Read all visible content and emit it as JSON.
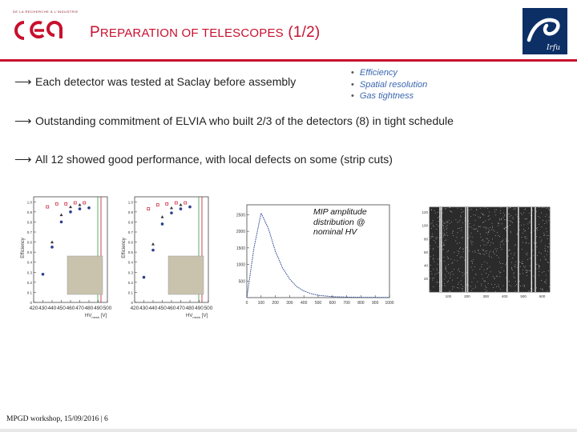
{
  "header": {
    "org_line": "DE LA RECHERCHE À L'INDUSTRIE",
    "title_part1": "P",
    "title_part2": "REPARATION OF TELESCOPES",
    "title_part3": " (1/2)",
    "colors": {
      "accent": "#c8102e",
      "irfu_bg": "#0c2f66",
      "bullet_blue": "#3a67b0"
    }
  },
  "bullets": {
    "row1": "Each detector was tested at Saclay before assembly",
    "row2": "Outstanding commitment of ELVIA who built 2/3 of the detectors (8) in tight schedule",
    "row3": "All 12 showed good performance, with local defects on some (strip cuts)",
    "arrow_glyph": "⟶"
  },
  "sub_bullets": [
    "Efficiency",
    "Spatial resolution",
    "Gas tightness"
  ],
  "caption": "MIP amplitude distribution @ nominal HV",
  "footer": {
    "text": "MPGD workshop, 15/09/2016 | 6"
  },
  "chart_data": [
    {
      "type": "scatter",
      "ylabel": "Efficiency",
      "xlabel": "HV",
      "xlabel_sub": "mesh",
      "xlabel_unit": "[V]",
      "x_ticks": [
        "420",
        "430",
        "440",
        "450",
        "460",
        "470",
        "480",
        "490",
        "500"
      ],
      "y_ticks": [
        "1.0",
        "0.9",
        "0.8",
        "0.7",
        "0.6",
        "0.5",
        "0.4",
        "0.3",
        "0.2",
        "0.1",
        "0"
      ],
      "xlim": [
        420,
        500
      ],
      "ylim": [
        0,
        1.05
      ],
      "series": [
        {
          "marker": "circle-blue",
          "x": [
            430,
            440,
            450,
            460,
            470,
            480
          ],
          "y": [
            0.28,
            0.55,
            0.8,
            0.9,
            0.93,
            0.94
          ]
        },
        {
          "marker": "square-red",
          "x": [
            435,
            445,
            455,
            465,
            475
          ],
          "y": [
            0.95,
            0.98,
            0.98,
            0.99,
            0.99
          ]
        },
        {
          "marker": "triangle-dark",
          "x": [
            440,
            450,
            460,
            470
          ],
          "y": [
            0.6,
            0.87,
            0.95,
            0.97
          ]
        }
      ]
    },
    {
      "type": "scatter",
      "ylabel": "Efficiency",
      "xlabel": "HV",
      "xlabel_sub": "mesh",
      "xlabel_unit": "[V]",
      "x_ticks": [
        "420",
        "430",
        "440",
        "450",
        "460",
        "470",
        "480",
        "490",
        "500"
      ],
      "y_ticks": [
        "1.0",
        "0.9",
        "0.8",
        "0.7",
        "0.6",
        "0.5",
        "0.4",
        "0.3",
        "0.2",
        "0.1",
        "0"
      ],
      "xlim": [
        420,
        500
      ],
      "ylim": [
        0,
        1.05
      ],
      "series": [
        {
          "marker": "circle-blue",
          "x": [
            430,
            440,
            450,
            460,
            470,
            480
          ],
          "y": [
            0.25,
            0.52,
            0.78,
            0.89,
            0.93,
            0.95
          ]
        },
        {
          "marker": "square-red",
          "x": [
            435,
            445,
            455,
            465,
            475
          ],
          "y": [
            0.93,
            0.97,
            0.98,
            0.99,
            0.99
          ]
        },
        {
          "marker": "triangle-dark",
          "x": [
            440,
            450,
            460,
            470
          ],
          "y": [
            0.58,
            0.85,
            0.94,
            0.97
          ]
        }
      ]
    },
    {
      "type": "line",
      "x_ticks": [
        "0",
        "100",
        "200",
        "300",
        "400",
        "500",
        "600",
        "700",
        "800",
        "900",
        "1000"
      ],
      "y_ticks": [
        "2500",
        "2000",
        "1500",
        "1000",
        "500"
      ],
      "xlim": [
        0,
        1000
      ],
      "ylim": [
        0,
        2800
      ],
      "x": [
        0,
        50,
        100,
        150,
        200,
        250,
        300,
        350,
        400,
        450,
        500,
        600,
        700,
        800,
        900,
        1000
      ],
      "y": [
        0,
        1500,
        2550,
        2100,
        1400,
        900,
        560,
        330,
        200,
        120,
        70,
        30,
        15,
        8,
        4,
        2
      ]
    },
    {
      "type": "heatmap",
      "x_ticks": [
        "100",
        "200",
        "300",
        "400",
        "500",
        "600"
      ],
      "y_ticks": [
        "20",
        "40",
        "60",
        "80",
        "100",
        "120"
      ],
      "xlim": [
        0,
        640
      ],
      "ylim": [
        0,
        128
      ],
      "cut_strips": [
        52,
        60,
        190,
        200,
        410,
        470,
        540,
        560
      ]
    }
  ]
}
